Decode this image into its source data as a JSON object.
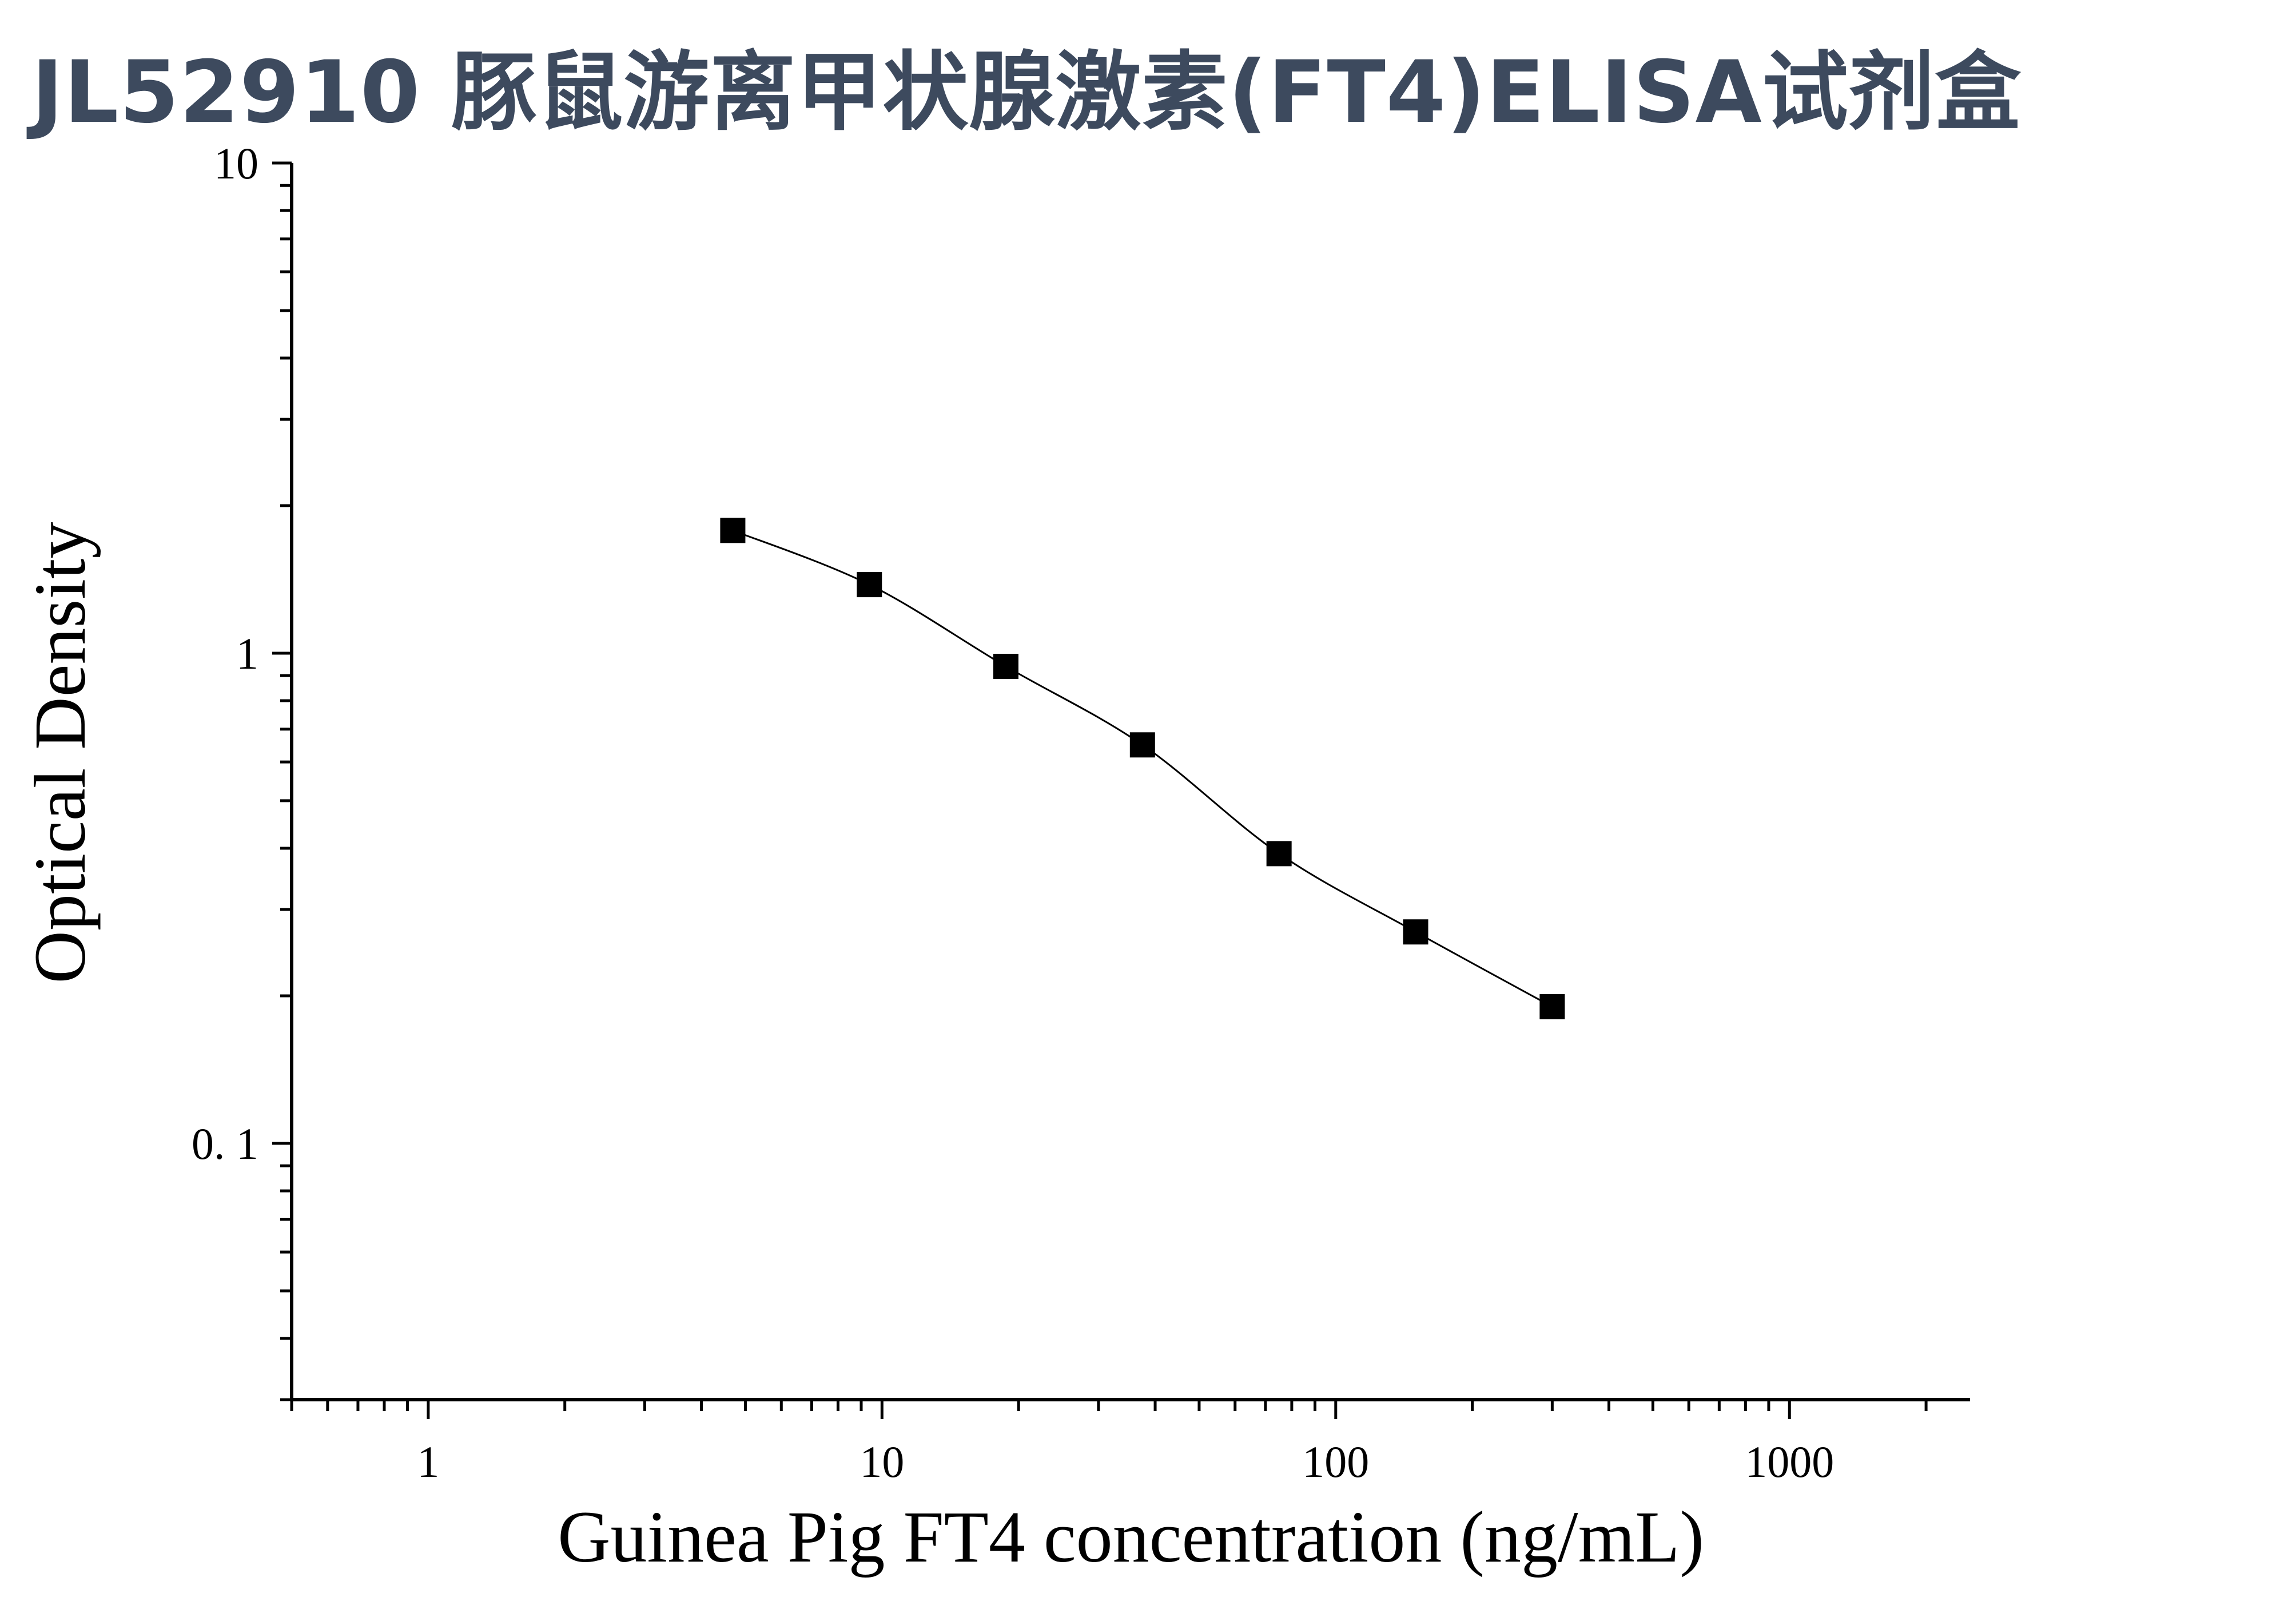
{
  "title": "JL52910 豚鼠游离甲状腺激素(FT4)ELISA试剂盒",
  "chart_data": {
    "type": "scatter",
    "xlabel": "Guinea Pig FT4 concentration (ng/mL)",
    "ylabel": "Optical Density",
    "x_scale": "log",
    "y_scale": "log",
    "xlim": [
      0.5,
      2500
    ],
    "ylim": [
      0.03,
      10
    ],
    "x_ticks": [
      {
        "value": 1,
        "label": "1"
      },
      {
        "value": 10,
        "label": "10"
      },
      {
        "value": 100,
        "label": "100"
      },
      {
        "value": 1000,
        "label": "1000"
      }
    ],
    "y_ticks": [
      {
        "value": 0.1,
        "label": "0. 1"
      },
      {
        "value": 1,
        "label": "1"
      },
      {
        "value": 10,
        "label": "10"
      }
    ],
    "grid": false,
    "legend": "none",
    "series": [
      {
        "x": [
          4.69,
          9.38,
          18.75,
          37.5,
          75,
          150,
          300
        ],
        "y": [
          1.78,
          1.38,
          0.94,
          0.65,
          0.39,
          0.27,
          0.19
        ],
        "marker": "square",
        "fit_curve": true,
        "color": "#000000"
      }
    ]
  }
}
